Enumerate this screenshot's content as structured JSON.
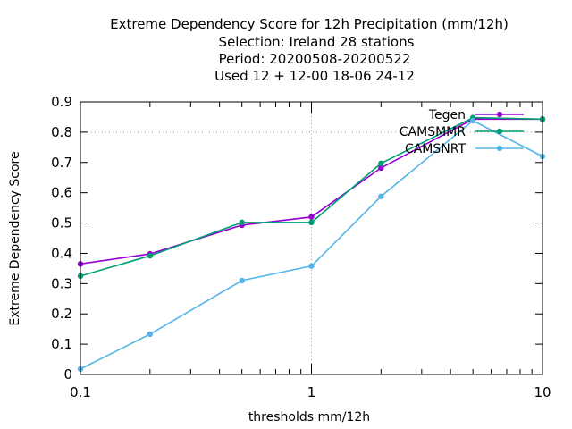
{
  "chart_data": {
    "type": "line",
    "title_lines": [
      "Extreme Dependency Score  for 12h Precipitation (mm/12h)",
      "Selection: Ireland      28 stations",
      "Period: 20200508-20200522",
      "Used  12 + 12-00 18-06 24-12"
    ],
    "xlabel": "thresholds mm/12h",
    "ylabel": "Extreme Dependency Score",
    "x_scale": "log",
    "xlim": [
      0.1,
      10
    ],
    "ylim": [
      0,
      0.9
    ],
    "x_tick_labels": [
      "0.1",
      "1",
      "10"
    ],
    "x_tick_values": [
      0.1,
      1,
      10
    ],
    "y_tick_labels": [
      "0",
      "0.1",
      "0.2",
      "0.3",
      "0.4",
      "0.5",
      "0.6",
      "0.7",
      "0.8",
      "0.9"
    ],
    "y_tick_values": [
      0,
      0.1,
      0.2,
      0.3,
      0.4,
      0.5,
      0.6,
      0.7,
      0.8,
      0.9
    ],
    "grid": "dotted lines at x=1 and y=0.8",
    "legend_position": "top-right",
    "x": [
      0.1,
      0.2,
      0.5,
      1,
      2,
      5,
      10
    ],
    "series": [
      {
        "name": "Tegen",
        "color": "#9400d3",
        "values": [
          0.365,
          0.398,
          0.493,
          0.52,
          0.682,
          0.843,
          0.843
        ]
      },
      {
        "name": "CAMSMMR",
        "color": "#009e73",
        "values": [
          0.325,
          0.392,
          0.502,
          0.502,
          0.697,
          0.848,
          0.843
        ]
      },
      {
        "name": "CAMSNRT",
        "color": "#56b4e9",
        "values": [
          0.018,
          0.133,
          0.31,
          0.358,
          0.588,
          0.838,
          0.72
        ]
      }
    ]
  }
}
